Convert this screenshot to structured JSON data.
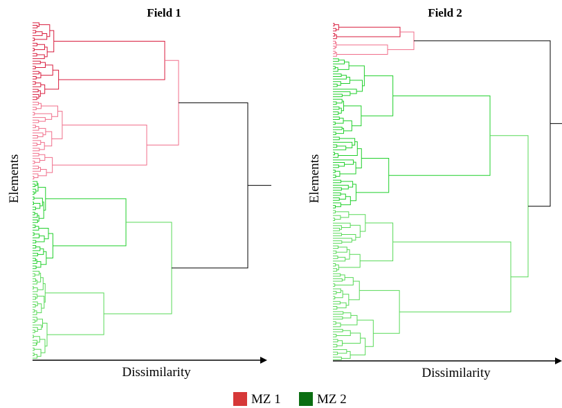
{
  "panels": [
    {
      "title": "Field 1",
      "xlabel": "Dissimilarity",
      "ylabel": "Elements",
      "clusters": [
        {
          "zone": "MZ 1",
          "leaves": 62
        },
        {
          "zone": "MZ 2",
          "leaves": 70
        }
      ]
    },
    {
      "title": "Field 2",
      "xlabel": "Dissimilarity",
      "ylabel": "Elements",
      "clusters": [
        {
          "zone": "MZ 1",
          "leaves": 14
        },
        {
          "zone": "MZ 2",
          "leaves": 120
        }
      ]
    }
  ],
  "legend": [
    {
      "label": "MZ 1",
      "color": "#d63838"
    },
    {
      "label": "MZ 2",
      "color": "#0b6e12"
    }
  ],
  "branch_colors": {
    "MZ 1": [
      "#d81b3c",
      "#f06e8a",
      "#c8102e"
    ],
    "MZ 2": [
      "#1fcf2a",
      "#57d957",
      "#12b81c"
    ],
    "root": "#000000"
  }
}
